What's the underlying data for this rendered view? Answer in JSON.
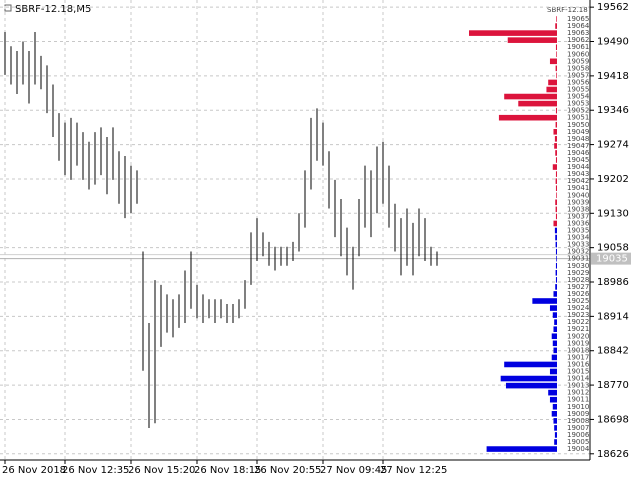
{
  "chart_data": {
    "type": "range-bar",
    "title": "SBRF-12.18,M5",
    "categories": [
      "26 Nov 2018",
      null,
      null,
      null,
      null,
      null,
      null,
      null,
      null,
      null,
      "26 Nov 12:35",
      null,
      null,
      null,
      null,
      null,
      null,
      null,
      null,
      null,
      null,
      "26 Nov 15:20",
      null,
      null,
      null,
      null,
      null,
      null,
      null,
      null,
      null,
      null,
      "26 Nov 18:15",
      null,
      null,
      null,
      null,
      null,
      null,
      null,
      null,
      null,
      "26 Nov 20:55",
      null,
      null,
      null,
      null,
      null,
      null,
      null,
      null,
      null,
      null,
      "27 Nov 09:45",
      null,
      null,
      null,
      null,
      null,
      null,
      null,
      null,
      null,
      "27 Nov 12:25",
      null,
      null,
      null,
      null,
      null,
      null,
      null,
      null,
      null
    ],
    "high": [
      19510,
      19480,
      19470,
      19490,
      19470,
      19510,
      19460,
      19440,
      19400,
      19340,
      19320,
      19330,
      19320,
      19300,
      19280,
      19300,
      19310,
      19290,
      19310,
      19260,
      19250,
      19230,
      19220,
      19050,
      18900,
      18990,
      18980,
      18960,
      18950,
      18960,
      19010,
      19050,
      18980,
      18960,
      18950,
      18950,
      18950,
      18940,
      18940,
      18950,
      18990,
      19090,
      19120,
      19090,
      19070,
      19060,
      19060,
      19060,
      19070,
      19130,
      19220,
      19330,
      19350,
      19320,
      19260,
      19200,
      19160,
      19100,
      19060,
      19160,
      19230,
      19220,
      19270,
      19280,
      19230,
      19150,
      19120,
      19140,
      19110,
      19140,
      19120,
      19060,
      19050
    ],
    "low": [
      19420,
      19400,
      19380,
      19400,
      19360,
      19400,
      19390,
      19340,
      19290,
      19240,
      19210,
      19200,
      19230,
      19200,
      19180,
      19190,
      19210,
      19170,
      19200,
      19150,
      19120,
      19130,
      19150,
      18800,
      18680,
      18690,
      18850,
      18880,
      18870,
      18890,
      18900,
      18930,
      18910,
      18900,
      18910,
      18900,
      18910,
      18900,
      18900,
      18910,
      18930,
      18980,
      19030,
      19040,
      19020,
      19010,
      19020,
      19020,
      19030,
      19050,
      19100,
      19180,
      19240,
      19230,
      19140,
      19080,
      19040,
      19000,
      18970,
      19040,
      19100,
      19080,
      19130,
      19150,
      19100,
      19050,
      19000,
      19020,
      19000,
      19040,
      19030,
      19020,
      19020
    ],
    "color": "#000000",
    "ylim": [
      18613,
      19577
    ],
    "yticks": [
      19562,
      19490,
      19418,
      19346,
      19274,
      19202,
      19130,
      19058,
      18986,
      18914,
      18842,
      18770,
      18698,
      18626
    ],
    "grid": true,
    "last_price": 19035,
    "dom": {
      "symbol": "SBRF-12.18",
      "xlim": [
        0,
        250
      ],
      "asks": {
        "color": "#dc143c",
        "prices": [
          19065,
          19064,
          19063,
          19062,
          19061,
          19060,
          19059,
          19058,
          19057,
          19056,
          19055,
          19054,
          19053,
          19052,
          19051,
          19050,
          19049,
          19048,
          19047,
          19046,
          19045,
          19044,
          19043,
          19042,
          19041,
          19040,
          19039,
          19038,
          19037,
          19036
        ],
        "volumes": [
          2,
          5,
          250,
          140,
          3,
          2,
          20,
          4,
          2,
          25,
          30,
          150,
          110,
          3,
          165,
          4,
          10,
          6,
          8,
          5,
          3,
          12,
          3,
          4,
          3,
          2,
          5,
          4,
          3,
          10
        ]
      },
      "bids": {
        "color": "#0000e0",
        "prices": [
          19035,
          19034,
          19033,
          19032,
          19031,
          19030,
          19029,
          19028,
          19027,
          19026,
          19025,
          19024,
          19023,
          19022,
          19021,
          19020,
          19019,
          19018,
          19017,
          19016,
          19015,
          19014,
          19013,
          19012,
          19011,
          19010,
          19009,
          19008,
          19007,
          19006,
          19005,
          19004
        ],
        "volumes": [
          6,
          5,
          4,
          3,
          2,
          3,
          4,
          3,
          5,
          10,
          70,
          20,
          12,
          8,
          10,
          15,
          12,
          10,
          15,
          150,
          20,
          160,
          145,
          25,
          20,
          12,
          15,
          10,
          8,
          6,
          8,
          200
        ]
      }
    }
  }
}
